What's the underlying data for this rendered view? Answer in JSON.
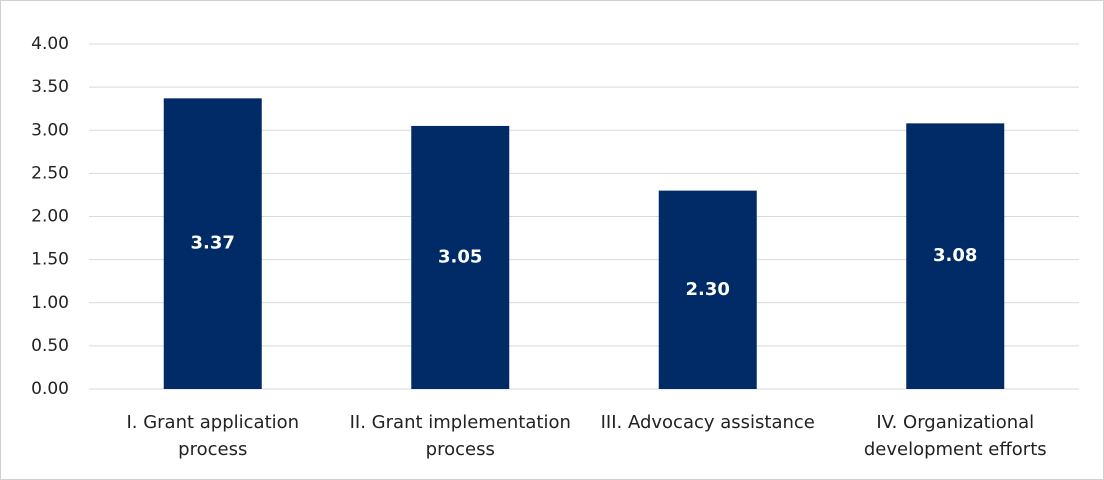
{
  "chart_data": {
    "type": "bar",
    "categories": [
      "I. Grant application process",
      "II. Grant implementation process",
      "III. Advocacy assistance",
      "IV. Organizational development efforts"
    ],
    "values": [
      3.37,
      3.05,
      2.3,
      3.08
    ],
    "value_labels": [
      "3.37",
      "3.05",
      "2.30",
      "3.08"
    ],
    "color": "#002b66",
    "ylim": [
      0,
      4
    ],
    "yticks": [
      {
        "value": 0,
        "label": "0.00"
      },
      {
        "value": 0.5,
        "label": "0.50"
      },
      {
        "value": 1,
        "label": "1.00"
      },
      {
        "value": 1.5,
        "label": "1.50"
      },
      {
        "value": 2,
        "label": "2.00"
      },
      {
        "value": 2.5,
        "label": "2.50"
      },
      {
        "value": 3,
        "label": "3.00"
      },
      {
        "value": 3.5,
        "label": "3.50"
      },
      {
        "value": 4,
        "label": "4.00"
      }
    ],
    "grid": true
  }
}
